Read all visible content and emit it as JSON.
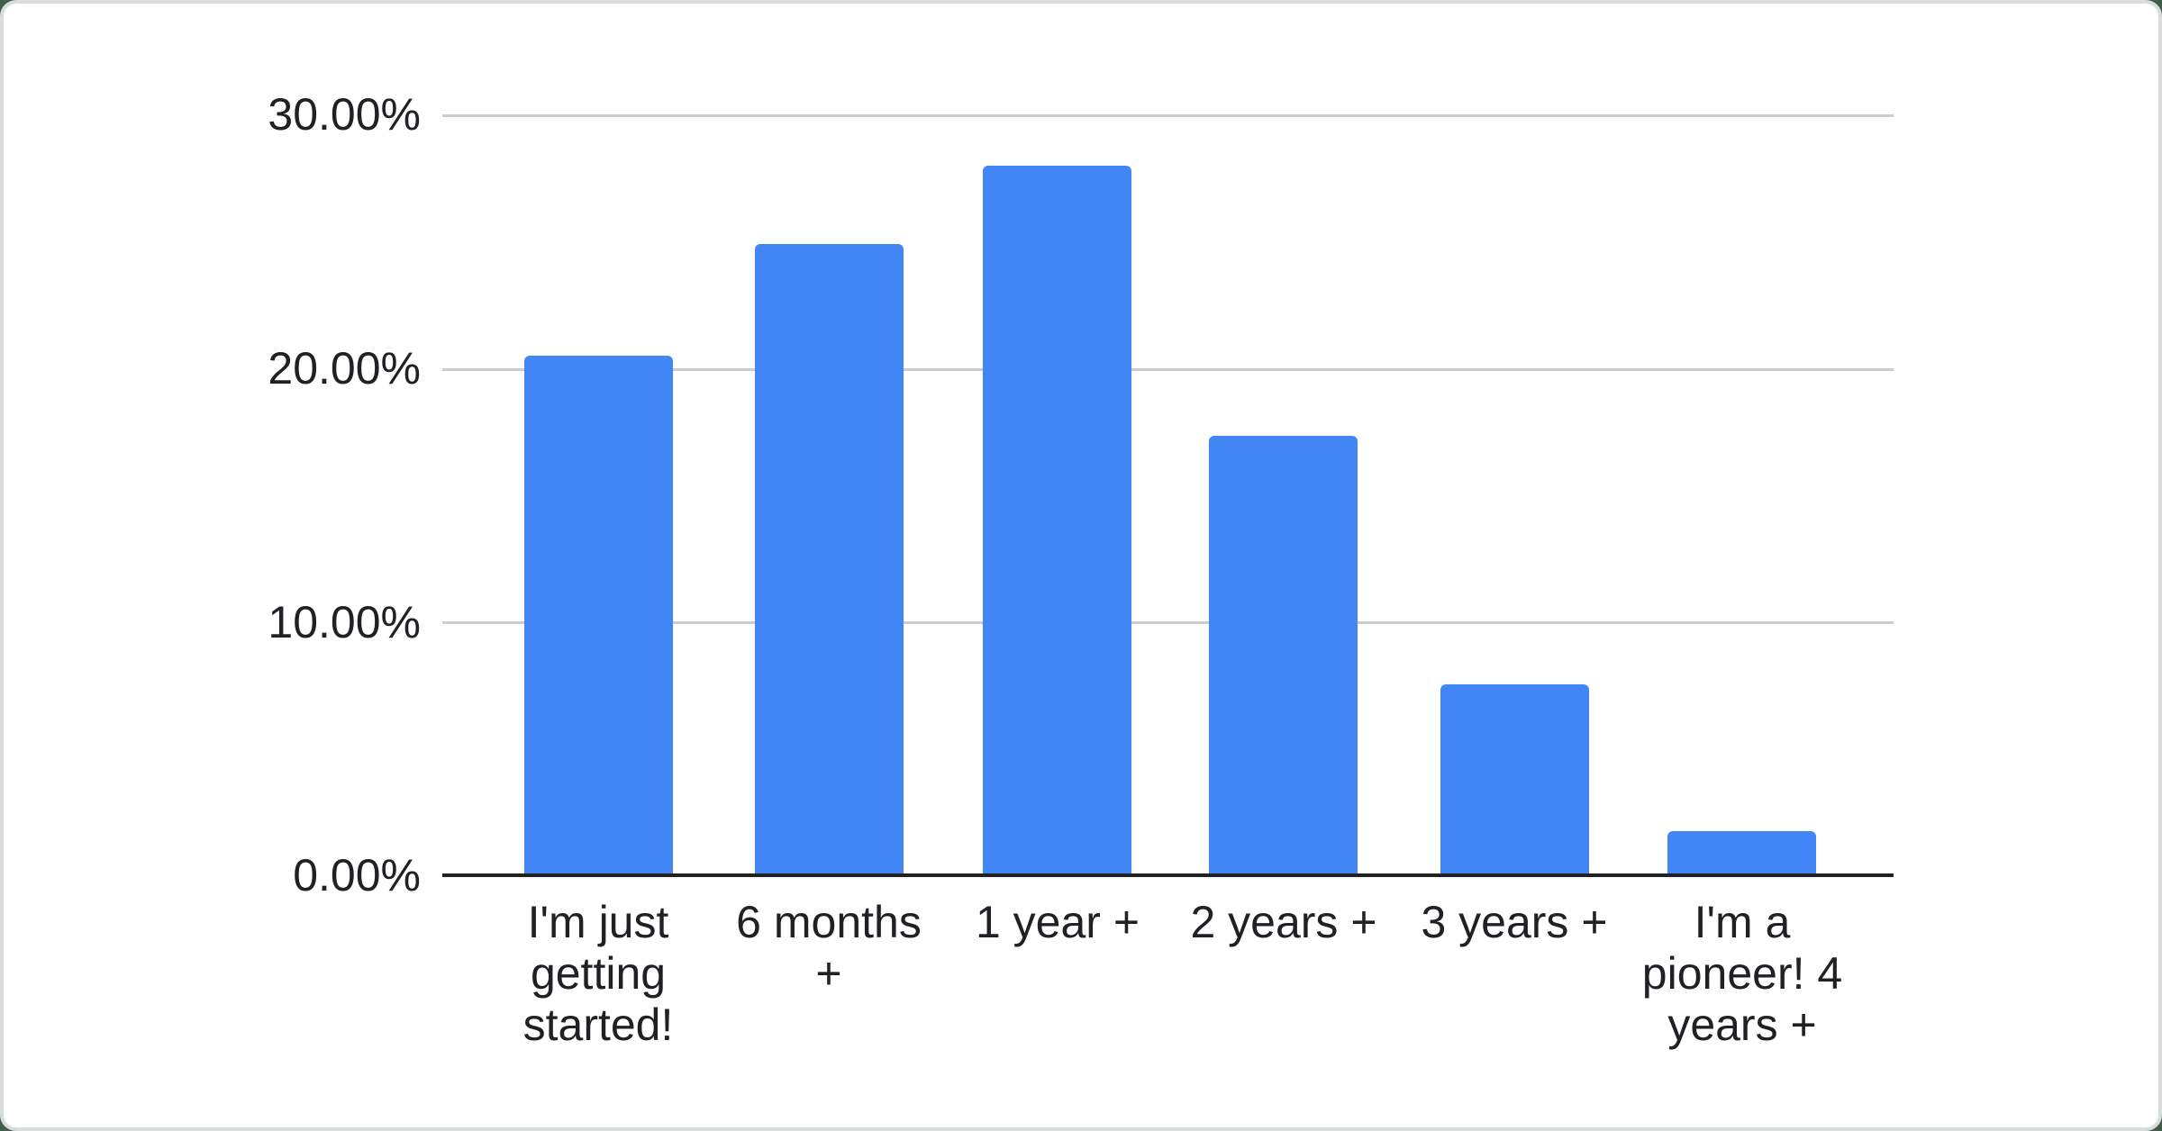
{
  "page": {
    "background_color": "#435e48",
    "card_color": "#ffffff",
    "card_edge_color": "#d8dcda"
  },
  "chart_data": {
    "type": "bar",
    "categories": [
      "I'm just getting started!",
      "6 months +",
      "1 year +",
      "2 years +",
      "3 years +",
      "I'm a pioneer! 4 years +"
    ],
    "values": [
      20.47,
      24.88,
      27.99,
      17.34,
      7.53,
      1.73
    ],
    "value_unit": "%",
    "yticks": [
      "30.00%",
      "20.00%",
      "10.00%",
      "0.00%"
    ],
    "ylim": [
      0,
      30
    ],
    "grid": "on",
    "legend": "none",
    "bar_color": "#4285f4",
    "gridline_color": "#cccccc",
    "axis_line_color": "#212121",
    "label_color": "#202124"
  }
}
